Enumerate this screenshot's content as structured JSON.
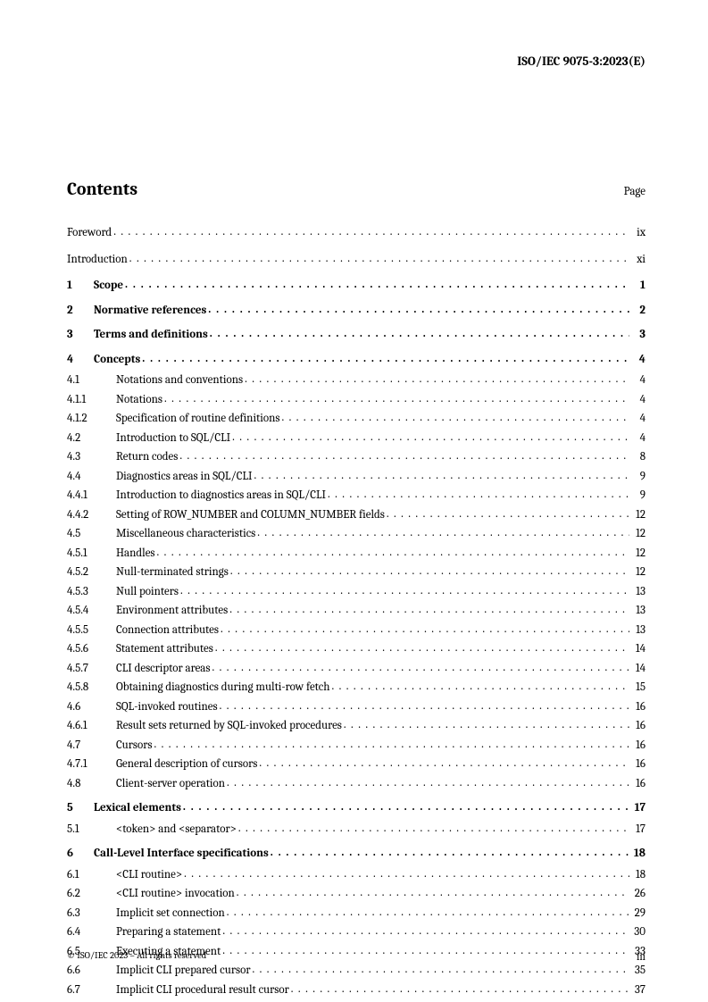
{
  "header_id": "ISO/IEC 9075-3:2023(E)",
  "contents_title": "Contents",
  "page_label": "Page",
  "prelim": [
    {
      "title": "Foreword",
      "page": "ix"
    },
    {
      "title": "Introduction",
      "page": "xi"
    }
  ],
  "entries": [
    {
      "type": "section",
      "num": "1",
      "title": "Scope",
      "page": "1"
    },
    {
      "type": "section",
      "num": "2",
      "title": "Normative  references",
      "page": "2"
    },
    {
      "type": "section",
      "num": "3",
      "title": "Terms and definitions",
      "page": "3"
    },
    {
      "type": "section",
      "num": "4",
      "title": "Concepts",
      "page": "4"
    },
    {
      "type": "sub",
      "num": "4.1",
      "title": "Notations and conventions",
      "page": "4"
    },
    {
      "type": "sub",
      "num": "4.1.1",
      "title": "Notations",
      "page": "4"
    },
    {
      "type": "sub",
      "num": "4.1.2",
      "title": "Specification of routine definitions",
      "page": "4"
    },
    {
      "type": "sub",
      "num": "4.2",
      "title": "Introduction to SQL/CLI",
      "page": "4"
    },
    {
      "type": "sub",
      "num": "4.3",
      "title": "Return  codes",
      "page": "8"
    },
    {
      "type": "sub",
      "num": "4.4",
      "title": "Diagnostics areas in SQL/CLI",
      "page": "9"
    },
    {
      "type": "sub",
      "num": "4.4.1",
      "title": "Introduction to diagnostics areas in SQL/CLI",
      "page": "9"
    },
    {
      "type": "sub",
      "num": "4.4.2",
      "title": "Setting of ROW_NUMBER and COLUMN_NUMBER fields",
      "page": "12"
    },
    {
      "type": "sub",
      "num": "4.5",
      "title": "Miscellaneous  characteristics",
      "page": "12"
    },
    {
      "type": "sub",
      "num": "4.5.1",
      "title": "Handles",
      "page": "12"
    },
    {
      "type": "sub",
      "num": "4.5.2",
      "title": "Null-terminated  strings",
      "page": "12"
    },
    {
      "type": "sub",
      "num": "4.5.3",
      "title": "Null pointers",
      "page": "13"
    },
    {
      "type": "sub",
      "num": "4.5.4",
      "title": "Environment  attributes",
      "page": "13"
    },
    {
      "type": "sub",
      "num": "4.5.5",
      "title": "Connection attributes",
      "page": "13"
    },
    {
      "type": "sub",
      "num": "4.5.6",
      "title": "Statement attributes",
      "page": "14"
    },
    {
      "type": "sub",
      "num": "4.5.7",
      "title": "CLI descriptor areas",
      "page": "14"
    },
    {
      "type": "sub",
      "num": "4.5.8",
      "title": "Obtaining diagnostics during multi-row fetch",
      "page": "15"
    },
    {
      "type": "sub",
      "num": "4.6",
      "title": "SQL-invoked routines",
      "page": "16"
    },
    {
      "type": "sub",
      "num": "4.6.1",
      "title": "Result sets returned by SQL-invoked procedures",
      "page": "16"
    },
    {
      "type": "sub",
      "num": "4.7",
      "title": "Cursors",
      "page": "16"
    },
    {
      "type": "sub",
      "num": "4.7.1",
      "title": "General description of cursors",
      "page": "16"
    },
    {
      "type": "sub",
      "num": "4.8",
      "title": "Client-server  operation",
      "page": "16"
    },
    {
      "type": "section",
      "num": "5",
      "title": "Lexical elements",
      "page": "17"
    },
    {
      "type": "sub",
      "num": "5.1",
      "title": "<token> and <separator>",
      "page": "17"
    },
    {
      "type": "section",
      "num": "6",
      "title": "Call-Level Interface specifications",
      "page": "18"
    },
    {
      "type": "sub",
      "num": "6.1",
      "title": "<CLI  routine>",
      "page": "18"
    },
    {
      "type": "sub",
      "num": "6.2",
      "title": "<CLI routine> invocation",
      "page": "26"
    },
    {
      "type": "sub",
      "num": "6.3",
      "title": "Implicit set connection",
      "page": "29"
    },
    {
      "type": "sub",
      "num": "6.4",
      "title": "Preparing  a  statement",
      "page": "30"
    },
    {
      "type": "sub",
      "num": "6.5",
      "title": "Executing  a  statement",
      "page": "33"
    },
    {
      "type": "sub",
      "num": "6.6",
      "title": "Implicit CLI prepared cursor",
      "page": "35"
    },
    {
      "type": "sub",
      "num": "6.7",
      "title": "Implicit CLI procedural result cursor",
      "page": "37"
    }
  ],
  "footer_copyright": "© ISO/IEC 2023 – All rights reserved",
  "footer_page": "iii"
}
